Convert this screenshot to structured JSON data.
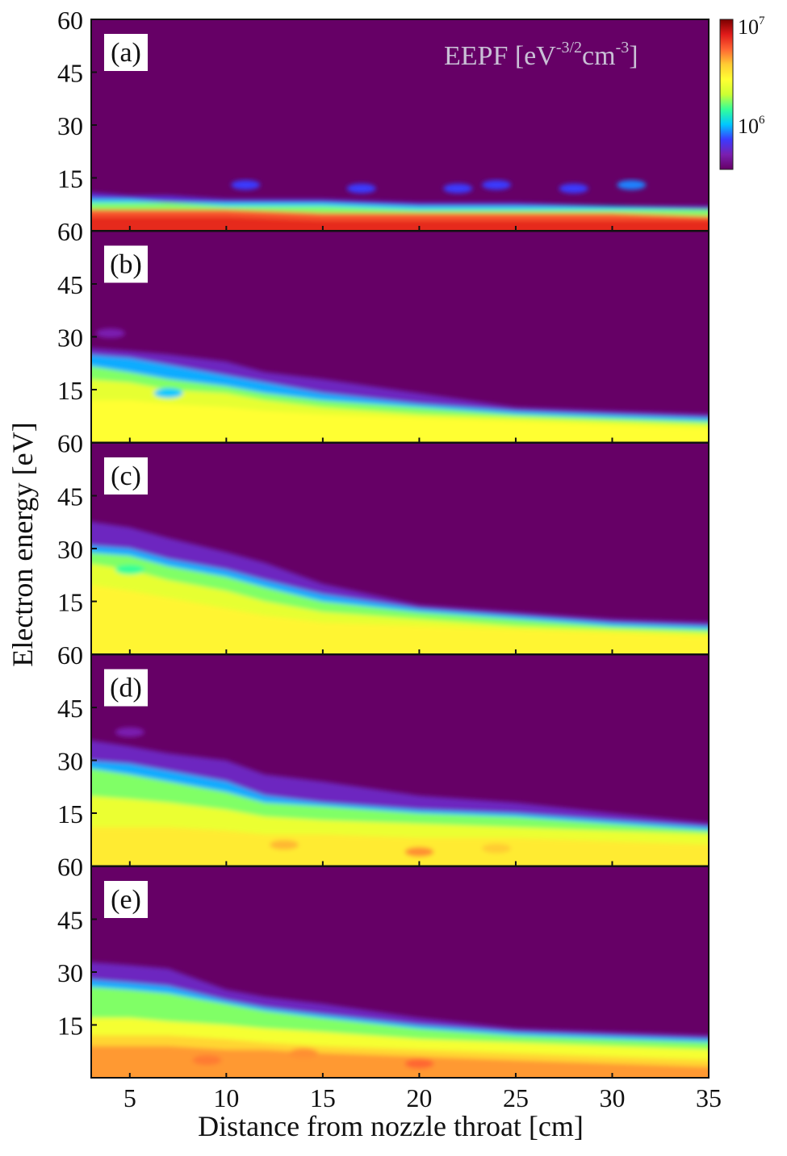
{
  "figure": {
    "ylabel": "Electron energy [eV]",
    "xlabel": "Distance from nozzle throat [cm]",
    "colorbar": {
      "title_base": "EEPF [eV",
      "title_exp1": "-3/2",
      "title_mid": "cm",
      "title_exp2": "-3",
      "title_end": "]",
      "tick_high_base": "10",
      "tick_high_exp": "7",
      "tick_mid_base": "10",
      "tick_mid_exp": "6",
      "scale": "log",
      "colors": [
        "#660066",
        "#7a1fb0",
        "#3b3bff",
        "#00c8ff",
        "#33ff99",
        "#ccff33",
        "#ffff33",
        "#ffcc33",
        "#ff6633",
        "#e01a1a",
        "#7a0000"
      ]
    }
  },
  "chart_data": {
    "type": "heatmap",
    "scale": "log",
    "x": {
      "label": "Distance from nozzle throat [cm]",
      "ticks": [
        5,
        10,
        15,
        20,
        25,
        30,
        35
      ],
      "lim": [
        3,
        35
      ]
    },
    "y": {
      "label": "Electron energy [eV]",
      "ticks_first_panel": [
        60,
        45,
        30,
        15
      ],
      "ticks_other_panels": [
        45,
        30,
        15
      ],
      "bottom_tick": "60",
      "lim": [
        0,
        60
      ]
    },
    "colorbar": {
      "ticks": [
        "10^6",
        "10^7"
      ]
    },
    "panels": [
      {
        "label": "(a)",
        "x": [
          3,
          5,
          7,
          10,
          15,
          20,
          25,
          30,
          35
        ],
        "bands": [
          {
            "level": 0.15,
            "top": [
              11,
              10,
              10,
              9,
              9,
              8,
              8,
              7,
              7
            ]
          },
          {
            "level": 0.3,
            "top": [
              9,
              9,
              8,
              8,
              8,
              7,
              7,
              7,
              6
            ]
          },
          {
            "level": 0.45,
            "top": [
              8,
              8,
              8,
              7,
              7,
              6,
              6,
              6,
              6
            ]
          },
          {
            "level": 0.82,
            "top": [
              6,
              6,
              6,
              6,
              5,
              5,
              5,
              5,
              4
            ]
          },
          {
            "level": 0.88,
            "top": [
              4,
              4,
              4,
              4,
              3,
              3,
              3,
              3,
              3
            ]
          }
        ],
        "blobs": [
          {
            "x": 11,
            "y": 13,
            "level": 0.2
          },
          {
            "x": 17,
            "y": 12,
            "level": 0.2
          },
          {
            "x": 22,
            "y": 12,
            "level": 0.2
          },
          {
            "x": 24,
            "y": 13,
            "level": 0.2
          },
          {
            "x": 28,
            "y": 12,
            "level": 0.2
          },
          {
            "x": 31,
            "y": 13,
            "level": 0.25
          }
        ]
      },
      {
        "label": "(b)",
        "x": [
          3,
          5,
          7,
          10,
          12,
          15,
          20,
          25,
          30,
          35
        ],
        "bands": [
          {
            "level": 0.12,
            "top": [
              27,
              26,
              25,
              23,
              20,
              18,
              14,
              10,
              9,
              8
            ]
          },
          {
            "level": 0.28,
            "top": [
              25,
              24,
              22,
              19,
              17,
              14,
              11,
              9,
              8,
              7
            ]
          },
          {
            "level": 0.45,
            "top": [
              22,
              20,
              18,
              16,
              14,
              12,
              10,
              8,
              7,
              6
            ]
          },
          {
            "level": 0.55,
            "top": [
              18,
              17,
              15,
              14,
              12,
              10,
              8,
              7,
              6,
              5
            ]
          },
          {
            "level": 0.6,
            "top": [
              12,
              12,
              11,
              10,
              9,
              8,
              7,
              6,
              5,
              4
            ]
          }
        ],
        "blobs": [
          {
            "x": 4,
            "y": 31,
            "level": 0.1
          },
          {
            "x": 7,
            "y": 14,
            "level": 0.3
          }
        ]
      },
      {
        "label": "(c)",
        "x": [
          3,
          5,
          7,
          10,
          12,
          15,
          20,
          25,
          30,
          35
        ],
        "bands": [
          {
            "level": 0.12,
            "top": [
              38,
              36,
              33,
              29,
              26,
              20,
              14,
              12,
              10,
              9
            ]
          },
          {
            "level": 0.28,
            "top": [
              31,
              30,
              27,
              24,
              21,
              17,
              13,
              11,
              9,
              8
            ]
          },
          {
            "level": 0.45,
            "top": [
              29,
              28,
              25,
              22,
              19,
              15,
              12,
              10,
              8,
              7
            ]
          },
          {
            "level": 0.55,
            "top": [
              26,
              24,
              21,
              18,
              15,
              12,
              10,
              8,
              7,
              6
            ]
          },
          {
            "level": 0.62,
            "top": [
              20,
              18,
              16,
              13,
              11,
              9,
              8,
              7,
              6,
              5
            ]
          }
        ],
        "blobs": [
          {
            "x": 5,
            "y": 24,
            "level": 0.4
          }
        ]
      },
      {
        "label": "(d)",
        "x": [
          3,
          5,
          7,
          10,
          12,
          15,
          20,
          25,
          30,
          35
        ],
        "bands": [
          {
            "level": 0.12,
            "top": [
              36,
              34,
              32,
              30,
              26,
              24,
              20,
              18,
              15,
              12
            ]
          },
          {
            "level": 0.28,
            "top": [
              30,
              29,
              27,
              24,
              20,
              18,
              16,
              15,
              13,
              11
            ]
          },
          {
            "level": 0.45,
            "top": [
              28,
              26,
              24,
              21,
              18,
              17,
              15,
              14,
              12,
              10
            ]
          },
          {
            "level": 0.56,
            "top": [
              20,
              19,
              18,
              16,
              14,
              13,
              12,
              11,
              10,
              9
            ]
          },
          {
            "level": 0.64,
            "top": [
              11,
              11,
              11,
              10,
              9,
              9,
              8,
              8,
              7,
              6
            ]
          }
        ],
        "blobs": [
          {
            "x": 13,
            "y": 6,
            "level": 0.72
          },
          {
            "x": 20,
            "y": 4,
            "level": 0.76
          },
          {
            "x": 24,
            "y": 5,
            "level": 0.7
          },
          {
            "x": 5,
            "y": 38,
            "level": 0.1
          }
        ]
      },
      {
        "label": "(e)",
        "x": [
          3,
          5,
          7,
          10,
          12,
          15,
          20,
          25,
          30,
          35
        ],
        "bands": [
          {
            "level": 0.12,
            "top": [
              33,
              32,
              31,
              25,
              23,
              21,
              17,
              14,
              13,
              12
            ]
          },
          {
            "level": 0.28,
            "top": [
              28,
              27,
              26,
              22,
              20,
              18,
              15,
              13,
              12,
              11
            ]
          },
          {
            "level": 0.45,
            "top": [
              26,
              25,
              24,
              21,
              19,
              17,
              14,
              12,
              11,
              10
            ]
          },
          {
            "level": 0.58,
            "top": [
              17,
              17,
              16,
              15,
              14,
              13,
              11,
              10,
              9,
              8
            ]
          },
          {
            "level": 0.68,
            "top": [
              12,
              12,
              12,
              11,
              10,
              9,
              8,
              7,
              6,
              5
            ]
          },
          {
            "level": 0.75,
            "top": [
              9,
              9,
              9,
              8,
              8,
              7,
              6,
              5,
              4,
              3
            ]
          }
        ],
        "blobs": [
          {
            "x": 9,
            "y": 5,
            "level": 0.78
          },
          {
            "x": 20,
            "y": 4,
            "level": 0.8
          },
          {
            "x": 14,
            "y": 7,
            "level": 0.76
          }
        ]
      }
    ]
  }
}
